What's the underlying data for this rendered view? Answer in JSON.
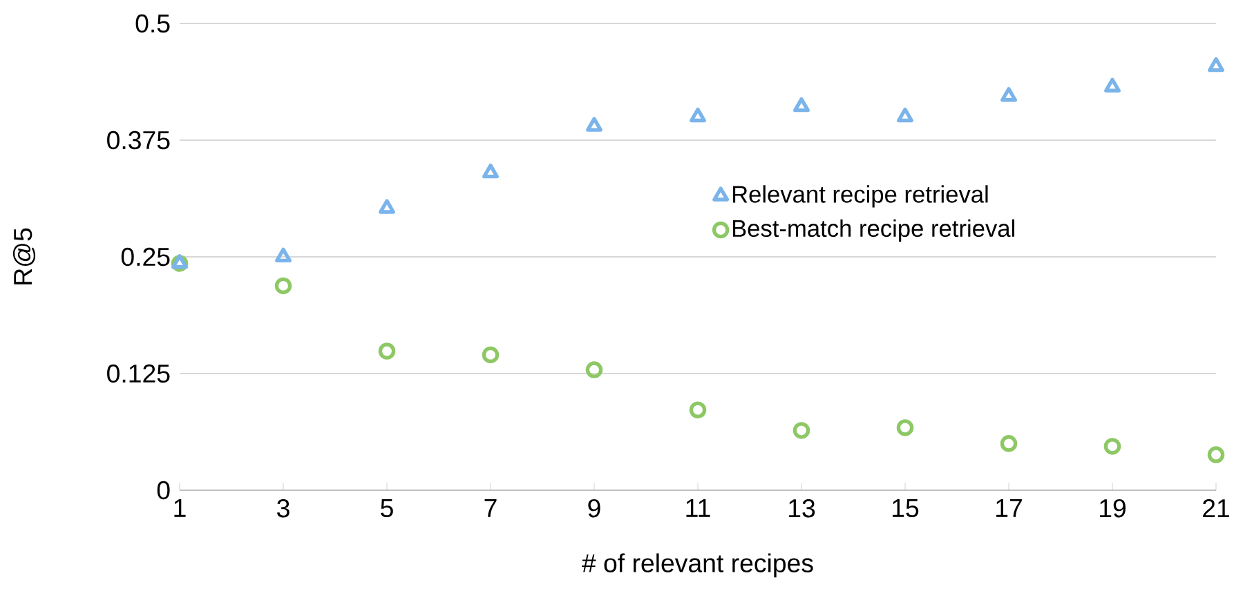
{
  "chart_data": {
    "type": "scatter",
    "xlabel": "# of relevant recipes",
    "ylabel": "R@5",
    "x": [
      1,
      3,
      5,
      7,
      9,
      11,
      13,
      15,
      17,
      19,
      21
    ],
    "series": [
      {
        "name": "Relevant recipe retrieval",
        "color": "#7ab4ea",
        "marker": "triangle",
        "values": [
          0.243,
          0.25,
          0.302,
          0.34,
          0.39,
          0.4,
          0.411,
          0.4,
          0.422,
          0.432,
          0.454
        ]
      },
      {
        "name": "Best-match recipe retrieval",
        "color": "#8dc865",
        "marker": "circle",
        "values": [
          0.243,
          0.219,
          0.149,
          0.145,
          0.129,
          0.086,
          0.064,
          0.067,
          0.05,
          0.047,
          0.038
        ]
      }
    ],
    "xlim": [
      1,
      21
    ],
    "ylim": [
      0,
      0.5
    ],
    "xticks": [
      1,
      3,
      5,
      7,
      9,
      11,
      13,
      15,
      17,
      19,
      21
    ],
    "yticks": [
      0,
      {
        "value": 0.125,
        "label": "0.125"
      },
      0.25,
      0.375,
      0.5
    ],
    "grid": "y",
    "legend": "right"
  }
}
